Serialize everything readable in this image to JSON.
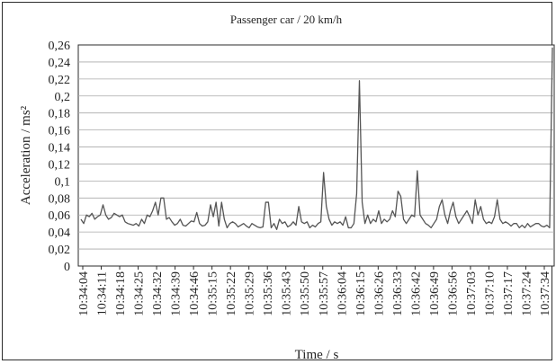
{
  "chart_data": {
    "type": "line",
    "title": "Passenger car / 20 km/h",
    "xlabel": "Time / s",
    "ylabel": "Acceleration / ms²",
    "ylim": [
      0,
      0.26
    ],
    "y_ticks": [
      "0",
      "0,02",
      "0,04",
      "0,06",
      "0,08",
      "0,1",
      "0,12",
      "0,14",
      "0,16",
      "0,18",
      "0,2",
      "0,22",
      "0,24",
      "0,26"
    ],
    "x_ticks": [
      "10:34:04",
      "10:34:11",
      "10:34:18",
      "10:34:25",
      "10:34:32",
      "10:34:39",
      "10:34:46",
      "10:35:15",
      "10:35:22",
      "10:35:29",
      "10:35:36",
      "10:35:43",
      "10:35:50",
      "10:35:57",
      "10:36:04",
      "10:36:15",
      "10:36:26",
      "10:36:33",
      "10:36:42",
      "10:36:49",
      "10:36:56",
      "10:37:03",
      "10:37:10",
      "10:37:17",
      "10:37:24",
      "10:37:34"
    ],
    "grid": true,
    "legend": "none",
    "colors": {
      "line": "#555555",
      "grid": "#aaaaaa",
      "frame": "#2b2b2b"
    },
    "series": [
      {
        "values": [
          0.055,
          0.05,
          0.06,
          0.058,
          0.062,
          0.055,
          0.058,
          0.06,
          0.072,
          0.06,
          0.055,
          0.057,
          0.062,
          0.06,
          0.058,
          0.06,
          0.052,
          0.05,
          0.049,
          0.048,
          0.05,
          0.047,
          0.055,
          0.05,
          0.06,
          0.058,
          0.065,
          0.075,
          0.06,
          0.08,
          0.08,
          0.055,
          0.057,
          0.052,
          0.048,
          0.05,
          0.055,
          0.048,
          0.047,
          0.05,
          0.053,
          0.052,
          0.063,
          0.05,
          0.047,
          0.048,
          0.052,
          0.072,
          0.058,
          0.075,
          0.047,
          0.075,
          0.055,
          0.045,
          0.05,
          0.052,
          0.05,
          0.046,
          0.048,
          0.05,
          0.047,
          0.045,
          0.05,
          0.048,
          0.046,
          0.045,
          0.046,
          0.075,
          0.075,
          0.045,
          0.05,
          0.043,
          0.055,
          0.05,
          0.052,
          0.046,
          0.048,
          0.052,
          0.048,
          0.07,
          0.052,
          0.05,
          0.052,
          0.045,
          0.048,
          0.046,
          0.05,
          0.052,
          0.11,
          0.07,
          0.055,
          0.048,
          0.052,
          0.05,
          0.052,
          0.048,
          0.058,
          0.045,
          0.045,
          0.05,
          0.085,
          0.218,
          0.075,
          0.05,
          0.06,
          0.05,
          0.055,
          0.052,
          0.065,
          0.05,
          0.055,
          0.052,
          0.055,
          0.065,
          0.058,
          0.088,
          0.082,
          0.055,
          0.05,
          0.055,
          0.06,
          0.058,
          0.112,
          0.06,
          0.055,
          0.05,
          0.048,
          0.045,
          0.05,
          0.055,
          0.07,
          0.078,
          0.06,
          0.05,
          0.065,
          0.075,
          0.058,
          0.05,
          0.055,
          0.06,
          0.065,
          0.058,
          0.05,
          0.078,
          0.06,
          0.07,
          0.055,
          0.05,
          0.052,
          0.05,
          0.058,
          0.078,
          0.055,
          0.05,
          0.052,
          0.05,
          0.047,
          0.05,
          0.05,
          0.045,
          0.048,
          0.045,
          0.05,
          0.046,
          0.048,
          0.05,
          0.05,
          0.047,
          0.046,
          0.048,
          0.045,
          0.257
        ]
      }
    ]
  }
}
